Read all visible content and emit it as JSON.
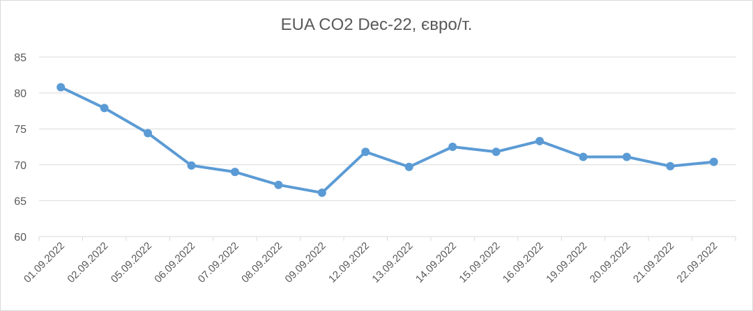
{
  "chart_data": {
    "type": "line",
    "title": "EUA CO2 Dec-22, євро/т.",
    "xlabel": "",
    "ylabel": "",
    "ylim": [
      60,
      85
    ],
    "yticks": [
      60,
      65,
      70,
      75,
      80,
      85
    ],
    "grid": true,
    "legend": "none",
    "categories": [
      "01.09.2022",
      "02.09.2022",
      "05.09.2022",
      "06.09.2022",
      "07.09.2022",
      "08.09.2022",
      "09.09.2022",
      "12.09.2022",
      "13.09.2022",
      "14.09.2022",
      "15.09.2022",
      "16.09.2022",
      "19.09.2022",
      "20.09.2022",
      "21.09.2022",
      "22.09.2022"
    ],
    "series": [
      {
        "values": [
          80.8,
          77.9,
          74.4,
          69.9,
          69.0,
          67.2,
          66.1,
          71.8,
          69.7,
          72.5,
          71.8,
          73.3,
          71.1,
          71.1,
          69.8,
          70.4
        ],
        "color": "#5B9BD5"
      }
    ]
  }
}
